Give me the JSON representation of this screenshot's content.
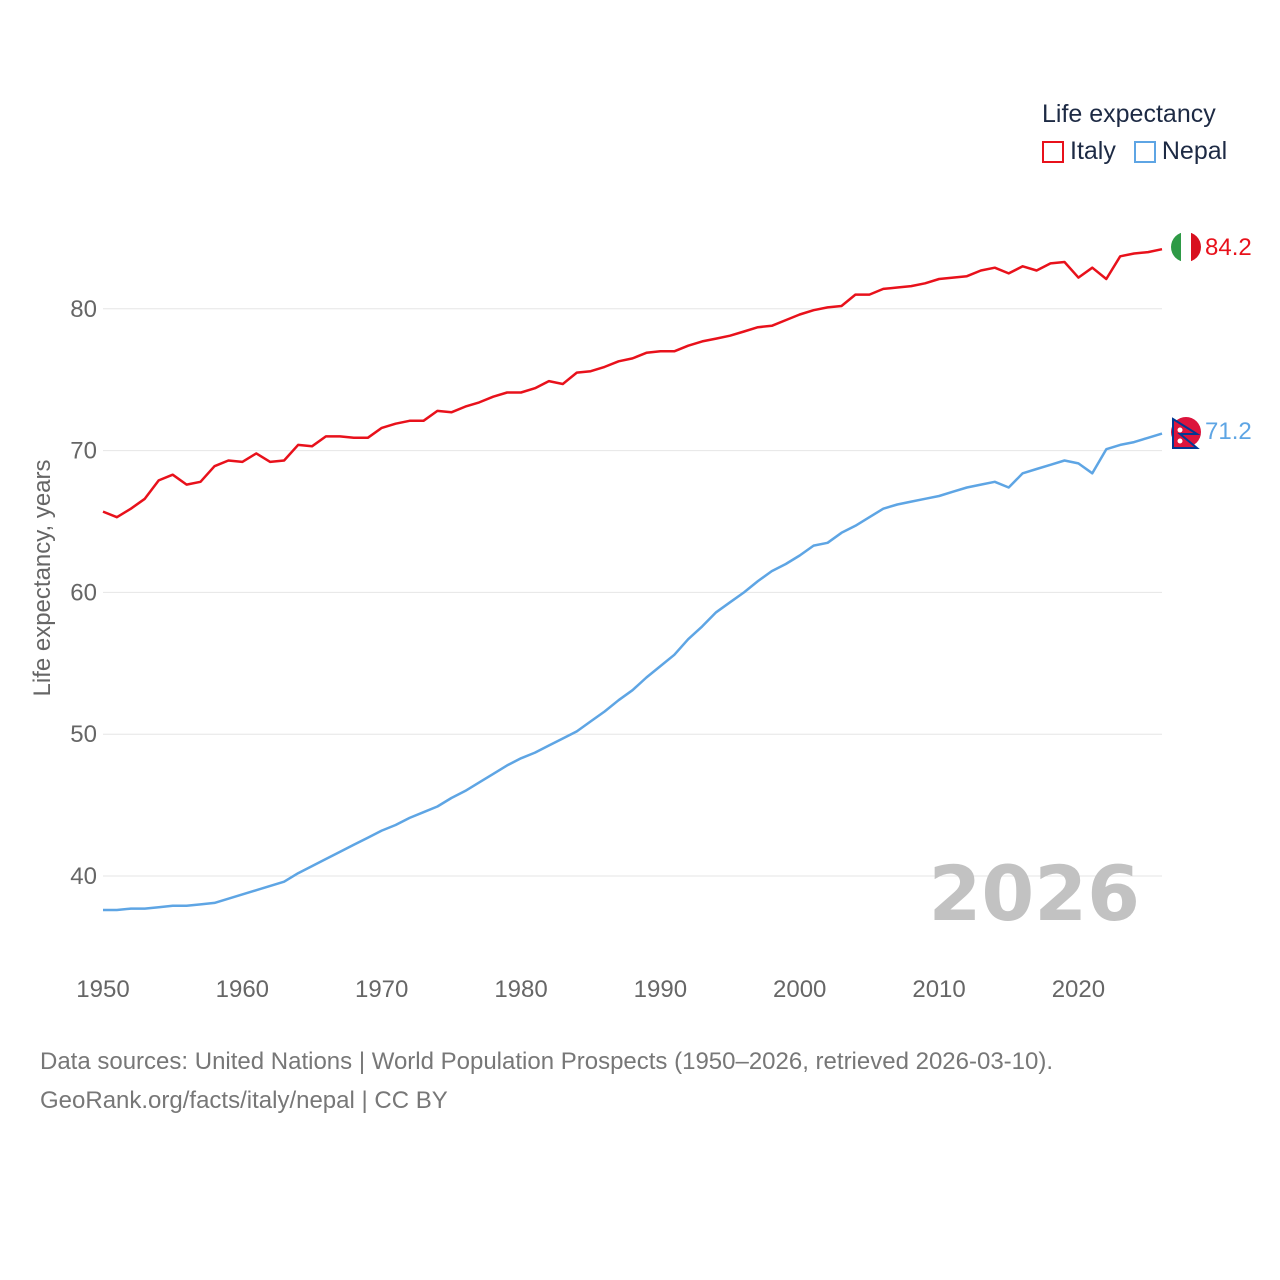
{
  "legend": {
    "title": "Life expectancy",
    "items": [
      {
        "label": "Italy",
        "color": "#e8111b"
      },
      {
        "label": "Nepal",
        "color": "#5ea5e4"
      }
    ]
  },
  "year_watermark": "2026",
  "end_labels": {
    "italy": "84.2",
    "nepal": "71.2"
  },
  "source": {
    "line1": "Data sources: United Nations | World Population Prospects (1950–2026, retrieved 2026-03-10).",
    "line2": "GeoRank.org/facts/italy/nepal | CC BY"
  },
  "chart_data": {
    "type": "line",
    "title": "Life expectancy",
    "xlabel": "",
    "ylabel": "Life expectancy, years",
    "xlim": [
      1950,
      2026
    ],
    "ylim": [
      35,
      87
    ],
    "x_ticks": [
      "1950",
      "1960",
      "1970",
      "1980",
      "1990",
      "2000",
      "2010",
      "2020"
    ],
    "y_ticks": [
      "40",
      "50",
      "60",
      "70",
      "80"
    ],
    "grid": true,
    "x": [
      1950,
      1951,
      1952,
      1953,
      1954,
      1955,
      1956,
      1957,
      1958,
      1959,
      1960,
      1961,
      1962,
      1963,
      1964,
      1965,
      1966,
      1967,
      1968,
      1969,
      1970,
      1971,
      1972,
      1973,
      1974,
      1975,
      1976,
      1977,
      1978,
      1979,
      1980,
      1981,
      1982,
      1983,
      1984,
      1985,
      1986,
      1987,
      1988,
      1989,
      1990,
      1991,
      1992,
      1993,
      1994,
      1995,
      1996,
      1997,
      1998,
      1999,
      2000,
      2001,
      2002,
      2003,
      2004,
      2005,
      2006,
      2007,
      2008,
      2009,
      2010,
      2011,
      2012,
      2013,
      2014,
      2015,
      2016,
      2017,
      2018,
      2019,
      2020,
      2021,
      2022,
      2023,
      2024,
      2025,
      2026
    ],
    "series": [
      {
        "name": "Italy",
        "color": "#e8111b",
        "values": [
          65.7,
          65.3,
          65.9,
          66.6,
          67.9,
          68.3,
          67.6,
          67.8,
          68.9,
          69.3,
          69.2,
          69.8,
          69.2,
          69.3,
          70.4,
          70.3,
          71.0,
          71.0,
          70.9,
          70.9,
          71.6,
          71.9,
          72.1,
          72.1,
          72.8,
          72.7,
          73.1,
          73.4,
          73.8,
          74.1,
          74.1,
          74.4,
          74.9,
          74.7,
          75.5,
          75.6,
          75.9,
          76.3,
          76.5,
          76.9,
          77.0,
          77.0,
          77.4,
          77.7,
          77.9,
          78.1,
          78.4,
          78.7,
          78.8,
          79.2,
          79.6,
          79.9,
          80.1,
          80.2,
          81.0,
          81.0,
          81.4,
          81.5,
          81.6,
          81.8,
          82.1,
          82.2,
          82.3,
          82.7,
          82.9,
          82.5,
          83.0,
          82.7,
          83.2,
          83.3,
          82.2,
          82.9,
          82.1,
          83.7,
          83.9,
          84.0,
          84.2
        ]
      },
      {
        "name": "Nepal",
        "color": "#5ea5e4",
        "values": [
          37.6,
          37.6,
          37.7,
          37.7,
          37.8,
          37.9,
          37.9,
          38.0,
          38.1,
          38.4,
          38.7,
          39.0,
          39.3,
          39.6,
          40.2,
          40.7,
          41.2,
          41.7,
          42.2,
          42.7,
          43.2,
          43.6,
          44.1,
          44.5,
          44.9,
          45.5,
          46.0,
          46.6,
          47.2,
          47.8,
          48.3,
          48.7,
          49.2,
          49.7,
          50.2,
          50.9,
          51.6,
          52.4,
          53.1,
          54.0,
          54.8,
          55.6,
          56.7,
          57.6,
          58.6,
          59.3,
          60.0,
          60.8,
          61.5,
          62.0,
          62.6,
          63.3,
          63.5,
          64.2,
          64.7,
          65.3,
          65.9,
          66.2,
          66.4,
          66.6,
          66.8,
          67.1,
          67.4,
          67.6,
          67.8,
          67.4,
          68.4,
          68.7,
          69.0,
          69.3,
          69.1,
          68.4,
          70.1,
          70.4,
          70.6,
          70.9,
          71.2
        ]
      }
    ]
  }
}
